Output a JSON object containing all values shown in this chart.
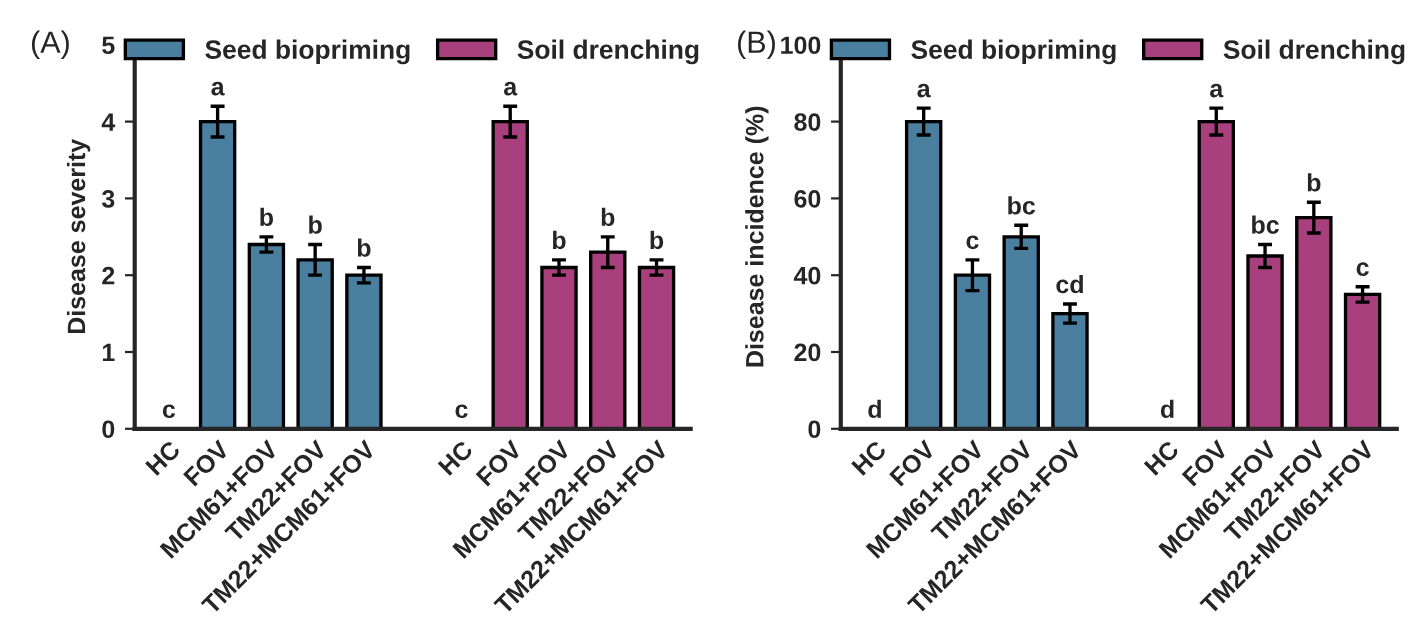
{
  "chart_data": [
    {
      "type": "bar",
      "title": "(A)",
      "ylabel": "Disease severity",
      "categories": [
        "HC",
        "FOV",
        "MCM61+FOV",
        "TM22+FOV",
        "TM22+MCM61+FOV",
        null,
        "HC",
        "FOV",
        "MCM61+FOV",
        "TM22+FOV",
        "TM22+MCM61+FOV"
      ],
      "series": [
        {
          "name": "Seed biopriming",
          "color": "#4a7fa0",
          "values": [
            0,
            4.0,
            2.4,
            2.2,
            2.0,
            null,
            null,
            null,
            null,
            null,
            null
          ],
          "errors": [
            null,
            0.2,
            0.1,
            0.2,
            0.1,
            null,
            null,
            null,
            null,
            null,
            null
          ],
          "value_labels": [
            "c",
            "a",
            "b",
            "b",
            "b",
            null,
            null,
            null,
            null,
            null,
            null
          ]
        },
        {
          "name": "Soil drenching",
          "color": "#a8407e",
          "values": [
            null,
            null,
            null,
            null,
            null,
            null,
            0,
            4.0,
            2.1,
            2.3,
            2.1
          ],
          "errors": [
            null,
            null,
            null,
            null,
            null,
            null,
            null,
            0.2,
            0.1,
            0.2,
            0.1
          ],
          "value_labels": [
            null,
            null,
            null,
            null,
            null,
            null,
            "c",
            "a",
            "b",
            "b",
            "b"
          ]
        }
      ],
      "ylim": [
        0,
        5
      ],
      "yticks": [
        0,
        1,
        2,
        3,
        4,
        5
      ],
      "grid": false,
      "legend": "top"
    },
    {
      "type": "bar",
      "title": "(B)",
      "ylabel": "Disease incidence (%)",
      "categories": [
        "HC",
        "FOV",
        "MCM61+FOV",
        "TM22+FOV",
        "TM22+MCM61+FOV",
        null,
        "HC",
        "FOV",
        "MCM61+FOV",
        "TM22+FOV",
        "TM22+MCM61+FOV"
      ],
      "series": [
        {
          "name": "Seed biopriming",
          "color": "#4a7fa0",
          "values": [
            0,
            80,
            40,
            50,
            30,
            null,
            null,
            null,
            null,
            null,
            null
          ],
          "errors": [
            null,
            3.5,
            4,
            3,
            2.5,
            null,
            null,
            null,
            null,
            null,
            null
          ],
          "value_labels": [
            "d",
            "a",
            "c",
            "bc",
            "cd",
            null,
            null,
            null,
            null,
            null,
            null
          ]
        },
        {
          "name": "Soil drenching",
          "color": "#a8407e",
          "values": [
            null,
            null,
            null,
            null,
            null,
            null,
            0,
            80,
            45,
            55,
            35
          ],
          "errors": [
            null,
            null,
            null,
            null,
            null,
            null,
            null,
            3.5,
            3,
            4,
            2
          ],
          "value_labels": [
            null,
            null,
            null,
            null,
            null,
            null,
            "d",
            "a",
            "bc",
            "b",
            "c"
          ]
        }
      ],
      "ylim": [
        0,
        100
      ],
      "yticks": [
        0,
        20,
        40,
        60,
        80,
        100
      ],
      "grid": false,
      "legend": "top"
    }
  ]
}
